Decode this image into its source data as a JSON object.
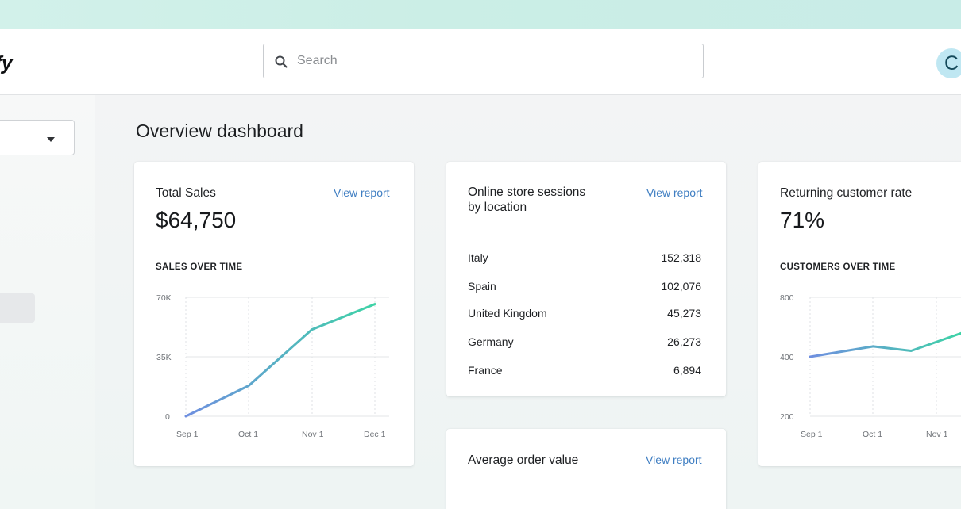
{
  "app": {
    "logo_text": "fy",
    "search_placeholder": "Search",
    "avatar_initial": "C"
  },
  "page": {
    "title": "Overview dashboard"
  },
  "total_sales": {
    "title": "Total Sales",
    "link": "View report",
    "value": "$64,750",
    "subheading": "SALES OVER TIME"
  },
  "sessions": {
    "title_line1": "Online store sessions",
    "title_line2": "by location",
    "link": "View report",
    "rows": [
      {
        "country": "Italy",
        "value": "152,318"
      },
      {
        "country": "Spain",
        "value": "102,076"
      },
      {
        "country": "United Kingdom",
        "value": "45,273"
      },
      {
        "country": "Germany",
        "value": "26,273"
      },
      {
        "country": "France",
        "value": "6,894"
      }
    ]
  },
  "aov": {
    "title": "Average order value",
    "link": "View report"
  },
  "returning": {
    "title": "Returning customer rate",
    "value": "71%",
    "subheading": "CUSTOMERS OVER TIME"
  },
  "colors": {
    "line_start": "#6f8fe0",
    "line_end": "#3ed3a6",
    "link": "#3f7ec2"
  },
  "chart_data": [
    {
      "type": "line",
      "categories": [
        "Sep 1",
        "Oct 1",
        "Nov 1",
        "Dec 1"
      ],
      "x": [
        0,
        1,
        2,
        3,
        3.5
      ],
      "series": [
        {
          "values": [
            0,
            18000,
            51000,
            58500,
            66000
          ],
          "x": [
            0,
            1,
            2,
            2.5,
            3
          ]
        }
      ],
      "yticks": [
        "70K",
        "35K",
        "0"
      ],
      "ylim": [
        0,
        70000
      ],
      "grid": true
    },
    {
      "type": "line",
      "categories": [
        "Sep 1",
        "Oct 1",
        "Nov 1"
      ],
      "series": [
        {
          "values": [
            400,
            470,
            440,
            560
          ],
          "x": [
            0,
            1,
            1.6,
            2.4
          ]
        }
      ],
      "yticks": [
        "800",
        "400",
        "200"
      ],
      "ylim": [
        200,
        800
      ],
      "grid": true
    }
  ]
}
